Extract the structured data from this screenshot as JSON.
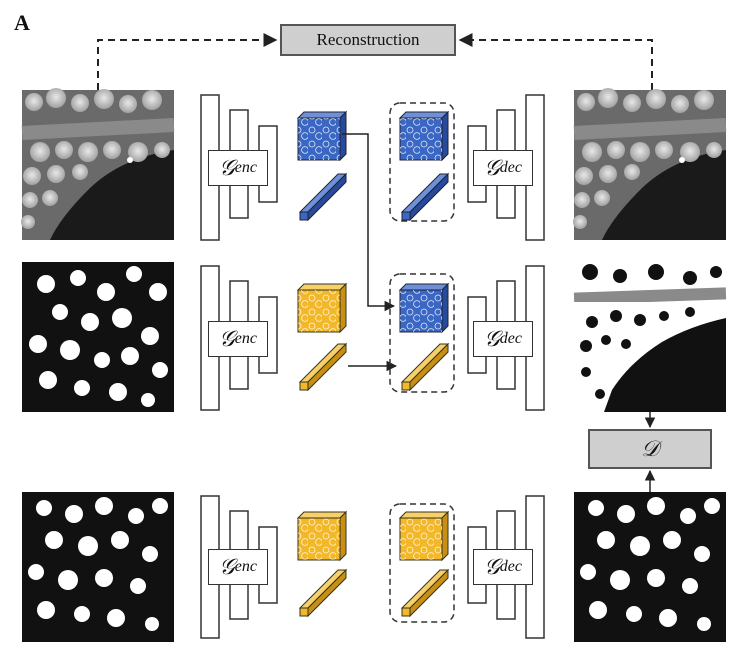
{
  "panel_label": "A",
  "reconstruction_label": "Reconstruction",
  "discriminator_label": "𝒟",
  "encoder_symbol": "𝒢",
  "encoder_subscript": "enc",
  "decoder_symbol": "𝒢",
  "decoder_subscript": "dec",
  "colors": {
    "content_blue": "#3a66c4",
    "style_yellow": "#f2b82a",
    "box_gray": "#cfcfcf",
    "line": "#222222"
  },
  "rows": [
    {
      "row": "top",
      "input": "grayscale-microscopy",
      "output": "grayscale-microscopy",
      "content_color": "blue",
      "style_color": "blue"
    },
    {
      "row": "middle",
      "input": "binary-mask",
      "output": "binary-mask-with-band",
      "content_color": "blue",
      "style_color": "yellow"
    },
    {
      "row": "bottom",
      "input": "binary-mask",
      "output": "binary-mask",
      "content_color": "yellow",
      "style_color": "yellow"
    }
  ]
}
